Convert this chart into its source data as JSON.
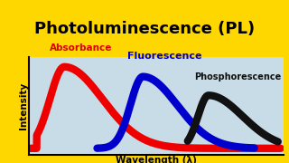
{
  "title": "Photoluminescence (PL)",
  "title_color": "#000000",
  "title_bg_color": "#FFD700",
  "background_color": "#C8DCE8",
  "xlabel": "Wavelength (λ)",
  "ylabel": "Intensity",
  "labels": [
    "Absorbance",
    "Fluorescence",
    "Phosphorescence"
  ],
  "label_colors": [
    "#DD0000",
    "#0000CC",
    "#111111"
  ],
  "label_fontsize": [
    7.5,
    8.0,
    7.0
  ],
  "curve_colors": [
    "#EE0000",
    "#0000CC",
    "#111111"
  ],
  "curve_linewidth": 6.0,
  "title_fontsize": 13,
  "xlabel_fontsize": 7.5,
  "ylabel_fontsize": 7.5
}
